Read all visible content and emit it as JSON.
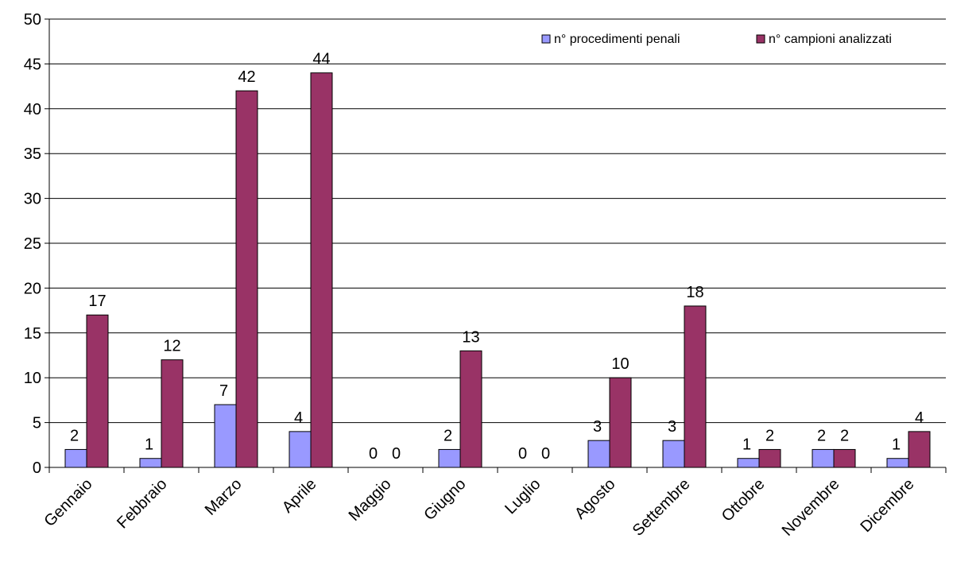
{
  "chart_data": {
    "type": "bar",
    "title": "",
    "xlabel": "",
    "ylabel": "",
    "ylim": [
      0,
      50
    ],
    "y_ticks": [
      0,
      5,
      10,
      15,
      20,
      25,
      30,
      35,
      40,
      45,
      50
    ],
    "grid": "horizontal",
    "legend_position": "top-right",
    "categories": [
      "Gennaio",
      "Febbraio",
      "Marzo",
      "Aprile",
      "Maggio",
      "Giugno",
      "Luglio",
      "Agosto",
      "Settembre",
      "Ottobre",
      "Novembre",
      "Dicembre"
    ],
    "series": [
      {
        "name": "n° procedimenti penali",
        "color": "#9999ff",
        "values": [
          2,
          1,
          7,
          4,
          0,
          2,
          0,
          3,
          3,
          1,
          2,
          1
        ]
      },
      {
        "name": "n° campioni analizzati",
        "color": "#993366",
        "values": [
          17,
          12,
          42,
          44,
          0,
          13,
          0,
          10,
          18,
          2,
          2,
          4
        ]
      }
    ]
  }
}
